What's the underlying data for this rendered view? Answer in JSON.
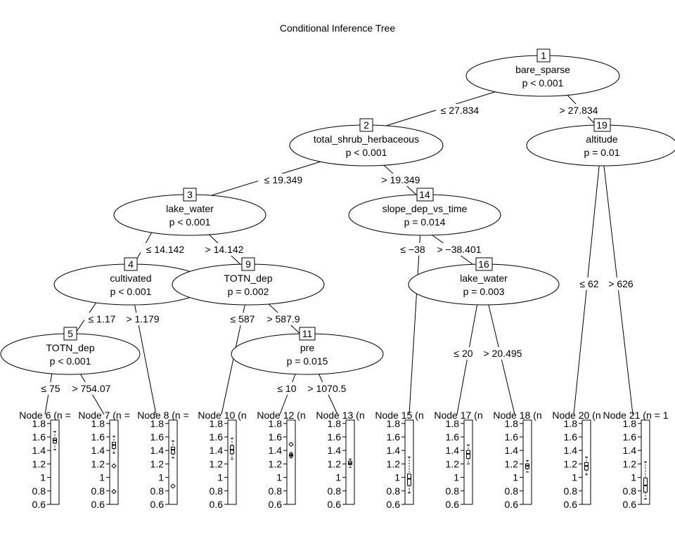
{
  "title": "Conditional Inference Tree",
  "inner_nodes": [
    {
      "id": "1",
      "variable": "bare_sparse",
      "p": "p < 0.001"
    },
    {
      "id": "2",
      "variable": "total_shrub_herbaceous",
      "p": "p < 0.001"
    },
    {
      "id": "3",
      "variable": "lake_water",
      "p": "p < 0.001"
    },
    {
      "id": "4",
      "variable": "cultivated",
      "p": "p < 0.001"
    },
    {
      "id": "5",
      "variable": "TOTN_dep",
      "p": "p < 0.001"
    },
    {
      "id": "9",
      "variable": "TOTN_dep",
      "p": "p = 0.002"
    },
    {
      "id": "11",
      "variable": "pre",
      "p": "p = 0.015"
    },
    {
      "id": "14",
      "variable": "slope_dep_vs_time",
      "p": "p = 0.014"
    },
    {
      "id": "16",
      "variable": "lake_water",
      "p": "p = 0.003"
    },
    {
      "id": "19",
      "variable": "altitude",
      "p": "p = 0.01"
    }
  ],
  "edge_labels": [
    "≤ 27.834",
    "> 27.834",
    "≤ 19.349",
    "> 19.349",
    "≤ 14.142",
    "> 14.142",
    "≤ 1.17",
    "> 1.179",
    "≤ 75",
    "> 754.07",
    "≤ 587",
    "> 587.9",
    "≤ 10",
    "> 1070.5",
    "≤ −38",
    "> −38.401",
    "≤ 20",
    "> 20.495",
    "≤ 62",
    "> 626"
  ],
  "terminal_labels": [
    "Node 6 (n =",
    "Node 7 (n =",
    "Node 8 (n =",
    "Node 10 (n",
    "Node 12 (n",
    "Node 13 (n",
    "Node 15 (n",
    "Node 17 (n",
    "Node 18 (n",
    "Node 20 (n",
    "Node 21 (n = 1"
  ],
  "y_ticks": [
    "1.8",
    "1.6",
    "1.4",
    "1.2",
    "1",
    "0.8",
    "0.6"
  ],
  "chart_data": {
    "type": "boxplot",
    "y_ticks": [
      1.8,
      1.6,
      1.4,
      1.2,
      1.0,
      0.8,
      0.6
    ],
    "ylim": [
      0.6,
      1.85
    ],
    "terminal_boxplots": [
      {
        "node": "6",
        "whisker_low": 1.41,
        "q1": 1.51,
        "median": 1.55,
        "q3": 1.58,
        "whisker_high": 1.68,
        "outliers": []
      },
      {
        "node": "7",
        "whisker_low": 1.36,
        "q1": 1.43,
        "median": 1.48,
        "q3": 1.52,
        "whisker_high": 1.61,
        "outliers": [
          1.17,
          0.79
        ]
      },
      {
        "node": "8",
        "whisker_low": 1.29,
        "q1": 1.35,
        "median": 1.41,
        "q3": 1.45,
        "whisker_high": 1.54,
        "outliers": [
          0.87
        ]
      },
      {
        "node": "10",
        "whisker_low": 1.27,
        "q1": 1.35,
        "median": 1.41,
        "q3": 1.47,
        "whisker_high": 1.58,
        "outliers": []
      },
      {
        "node": "12",
        "whisker_low": 1.29,
        "q1": 1.31,
        "median": 1.33,
        "q3": 1.35,
        "whisker_high": 1.37,
        "outliers": [
          1.49
        ]
      },
      {
        "node": "13",
        "whisker_low": 1.15,
        "q1": 1.19,
        "median": 1.21,
        "q3": 1.24,
        "whisker_high": 1.27,
        "outliers": []
      },
      {
        "node": "15",
        "whisker_low": 0.77,
        "q1": 0.88,
        "median": 0.98,
        "q3": 1.05,
        "whisker_high": 1.3,
        "outliers": []
      },
      {
        "node": "17",
        "whisker_low": 1.2,
        "q1": 1.28,
        "median": 1.35,
        "q3": 1.4,
        "whisker_high": 1.48,
        "outliers": []
      },
      {
        "node": "18",
        "whisker_low": 1.08,
        "q1": 1.13,
        "median": 1.17,
        "q3": 1.2,
        "whisker_high": 1.25,
        "outliers": []
      },
      {
        "node": "20",
        "whisker_low": 1.04,
        "q1": 1.11,
        "median": 1.17,
        "q3": 1.22,
        "whisker_high": 1.3,
        "outliers": []
      },
      {
        "node": "21",
        "whisker_low": 0.68,
        "q1": 0.78,
        "median": 0.88,
        "q3": 0.99,
        "whisker_high": 1.23,
        "outliers": []
      }
    ]
  }
}
